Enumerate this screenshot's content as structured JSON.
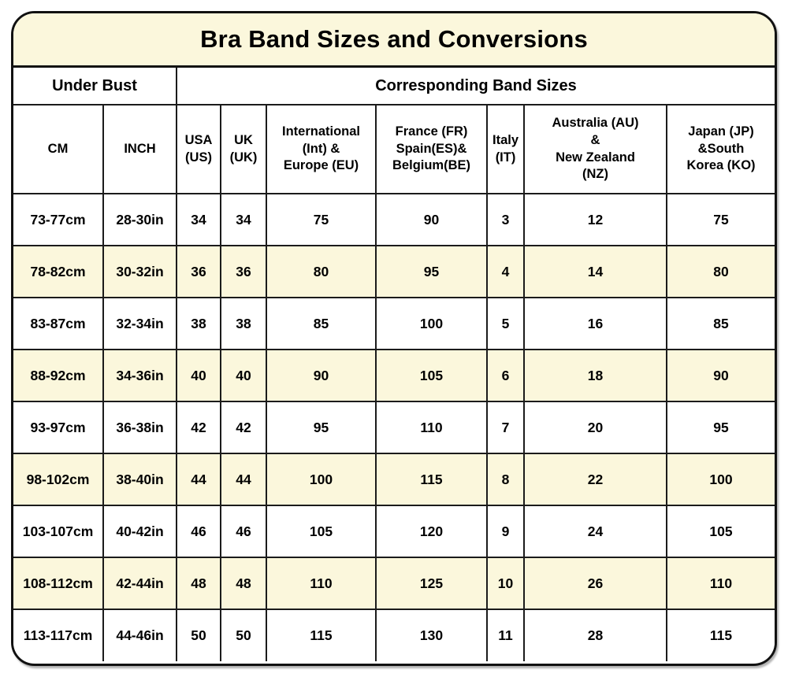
{
  "title": "Bra Band Sizes and Conversions",
  "colors": {
    "cream_background": "#FBF7DC",
    "row_alt_background": "#FBF7DC",
    "row_base_background": "#FFFFFF",
    "border": "#1B1B1B",
    "text": "#000000"
  },
  "chart_data": {
    "type": "table",
    "title": "Bra Band Sizes and Conversions",
    "group_headers": [
      {
        "label": "Under Bust",
        "colspan": 2
      },
      {
        "label": "Corresponding Band Sizes",
        "colspan": 7
      }
    ],
    "columns": [
      "CM",
      "INCH",
      "USA\n(US)",
      "UK\n(UK)",
      "International\n(Int) &\nEurope (EU)",
      "France (FR)\nSpain(ES)&\nBelgium(BE)",
      "Italy\n(IT)",
      "Australia (AU)\n&\nNew Zealand\n(NZ)",
      "Japan (JP)\n&South\nKorea (KO)"
    ],
    "rows": [
      [
        "73-77cm",
        "28-30in",
        "34",
        "34",
        "75",
        "90",
        "3",
        "12",
        "75"
      ],
      [
        "78-82cm",
        "30-32in",
        "36",
        "36",
        "80",
        "95",
        "4",
        "14",
        "80"
      ],
      [
        "83-87cm",
        "32-34in",
        "38",
        "38",
        "85",
        "100",
        "5",
        "16",
        "85"
      ],
      [
        "88-92cm",
        "34-36in",
        "40",
        "40",
        "90",
        "105",
        "6",
        "18",
        "90"
      ],
      [
        "93-97cm",
        "36-38in",
        "42",
        "42",
        "95",
        "110",
        "7",
        "20",
        "95"
      ],
      [
        "98-102cm",
        "38-40in",
        "44",
        "44",
        "100",
        "115",
        "8",
        "22",
        "100"
      ],
      [
        "103-107cm",
        "40-42in",
        "46",
        "46",
        "105",
        "120",
        "9",
        "24",
        "105"
      ],
      [
        "108-112cm",
        "42-44in",
        "48",
        "48",
        "110",
        "125",
        "10",
        "26",
        "110"
      ],
      [
        "113-117cm",
        "44-46in",
        "50",
        "50",
        "115",
        "130",
        "11",
        "28",
        "115"
      ]
    ]
  }
}
